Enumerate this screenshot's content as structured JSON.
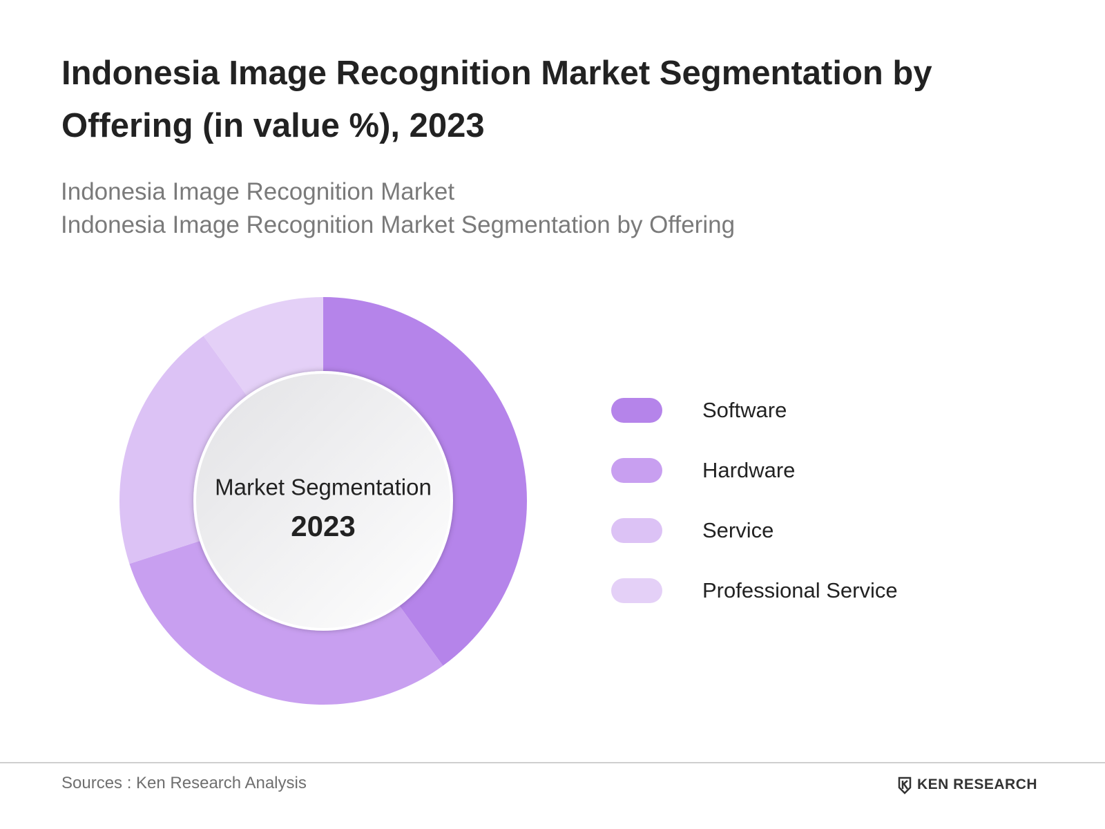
{
  "chart_data": {
    "type": "donut",
    "title": "Indonesia Image Recognition Market Segmentation by Offering (in value %), 2023",
    "subtitle": [
      "Indonesia Image Recognition Market",
      "Indonesia Image Recognition Market Segmentation by Offering"
    ],
    "center_label": "Market Segmentation",
    "center_year": "2023",
    "categories": [
      "Software",
      "Hardware",
      "Service",
      "Professional Service"
    ],
    "values": [
      40,
      30,
      20,
      10
    ],
    "colors": [
      "#b584ea",
      "#c89ff0",
      "#dcc2f5",
      "#e4d0f7"
    ]
  },
  "footer": {
    "source": "Sources : Ken Research Analysis",
    "brand": "KEN RESEARCH"
  }
}
